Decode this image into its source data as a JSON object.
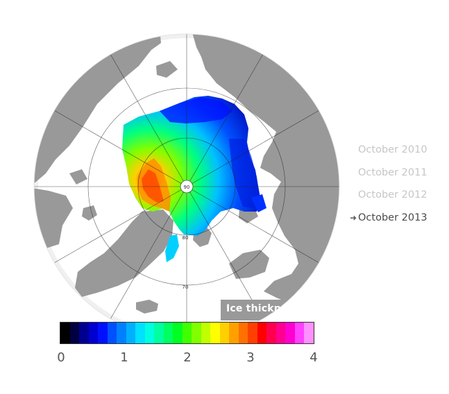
{
  "map": {
    "circle_labels": [
      "80",
      "70"
    ],
    "pole_label": "90"
  },
  "legend": {
    "title": "Ice thickness (m)",
    "ticks": [
      "0",
      "1",
      "2",
      "3",
      "4"
    ],
    "range_m": [
      0,
      4
    ]
  },
  "years": {
    "items": [
      {
        "label": "October 2010",
        "active": false
      },
      {
        "label": "October 2011",
        "active": false
      },
      {
        "label": "October 2012",
        "active": false
      },
      {
        "label": "October 2013",
        "active": true
      }
    ],
    "active_marker": "➜"
  },
  "colors": {
    "land": "#999999",
    "ocean": "#ffffff",
    "halo": "#f0f0f0",
    "palette": [
      "#000000",
      "#000040",
      "#000090",
      "#0000d0",
      "#0010ff",
      "#0050ff",
      "#0080ff",
      "#00b0ff",
      "#00e0ff",
      "#00ffe0",
      "#00ffa0",
      "#00ff60",
      "#00ff20",
      "#40ff00",
      "#80ff00",
      "#c0ff00",
      "#ffff00",
      "#ffd000",
      "#ffa000",
      "#ff7000",
      "#ff4000",
      "#ff0000",
      "#ff0050",
      "#ff0090",
      "#ff00d0",
      "#ff40ff",
      "#ff90ff"
    ]
  }
}
